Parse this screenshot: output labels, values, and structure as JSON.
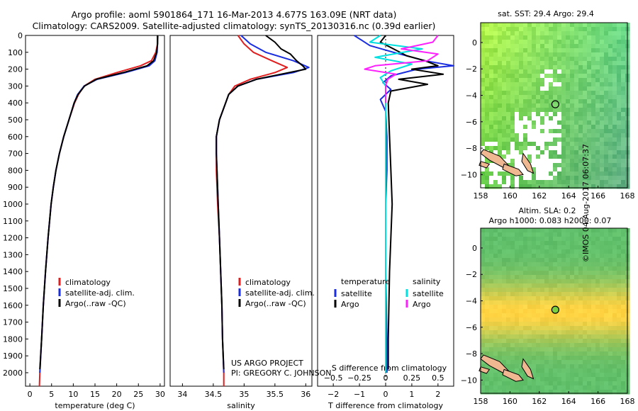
{
  "header": {
    "line1": "Argo profile: aoml 5901864_171 16-Mar-2013 4.677S 163.09E (NRT data)",
    "line2": "Climatology: CARS2009. Satellite-adjusted climatology: synTS_20130316.nc (0.39d earlier)"
  },
  "colors": {
    "climatology": "#e02020",
    "satellite": "#1a2ee0",
    "argo": "#000000",
    "sal_sat": "#00e0e0",
    "sal_argo": "#ff20ff"
  },
  "chart_data": [
    {
      "type": "line",
      "id": "temperature",
      "xlabel": "temperature (deg C)",
      "ylabel": "",
      "xlim": [
        -1,
        31
      ],
      "ylim": [
        2080,
        0
      ],
      "x_ticks": [
        0,
        5,
        10,
        15,
        20,
        25,
        30
      ],
      "y_ticks": [
        0,
        100,
        200,
        300,
        400,
        500,
        600,
        700,
        800,
        900,
        1000,
        1100,
        1200,
        1300,
        1400,
        1500,
        1600,
        1700,
        1800,
        1900,
        2000
      ],
      "legend": [
        "climatology",
        "satellite-adj. clim.",
        "Argo(..raw -QC)"
      ],
      "series": [
        {
          "name": "climatology",
          "color": "#e02020",
          "depth": [
            0,
            50,
            100,
            150,
            180,
            220,
            260,
            300,
            350,
            400,
            500,
            600,
            700,
            800,
            900,
            1000,
            1200,
            1400,
            1600,
            1800,
            2000,
            2080
          ],
          "values": [
            29.5,
            29.4,
            29.0,
            28.0,
            25.5,
            20.0,
            15.0,
            12.5,
            11.2,
            10.3,
            9.0,
            7.8,
            6.8,
            6.0,
            5.4,
            4.9,
            4.2,
            3.6,
            3.1,
            2.7,
            2.3,
            2.2
          ]
        },
        {
          "name": "satellite",
          "color": "#1a2ee0",
          "depth": [
            0,
            50,
            100,
            150,
            180,
            220,
            260,
            300,
            350,
            400,
            500,
            600,
            700,
            800,
            900,
            1000,
            1200,
            1400,
            1600,
            1800,
            2000
          ],
          "values": [
            29.4,
            29.4,
            29.3,
            28.8,
            27.5,
            22.0,
            15.5,
            12.5,
            11.0,
            10.2,
            9.0,
            7.8,
            6.8,
            6.0,
            5.4,
            4.9,
            4.2,
            3.6,
            3.1,
            2.7,
            2.3
          ]
        },
        {
          "name": "argo",
          "color": "#000000",
          "depth": [
            0,
            50,
            100,
            150,
            180,
            220,
            260,
            300,
            350,
            400,
            500,
            600,
            700,
            800,
            900,
            1000,
            1200,
            1400,
            1600,
            1800,
            1980
          ],
          "values": [
            29.4,
            29.4,
            29.2,
            28.5,
            27.0,
            21.5,
            15.3,
            12.6,
            11.1,
            10.2,
            9.0,
            7.8,
            6.8,
            6.0,
            5.4,
            4.9,
            4.2,
            3.6,
            3.1,
            2.7,
            2.3
          ]
        }
      ]
    },
    {
      "type": "line",
      "id": "salinity",
      "xlabel": "salinity",
      "ylabel": "",
      "xlim": [
        33.8,
        36.1
      ],
      "ylim": [
        2080,
        0
      ],
      "x_ticks": [
        34,
        34.5,
        35,
        35.5,
        36
      ],
      "legend": [
        "climatology",
        "satellite-adj. clim.",
        "Argo(..raw -QC)"
      ],
      "annotation": [
        "US ARGO PROJECT",
        "PI: GREGORY C. JOHNSON"
      ],
      "series": [
        {
          "name": "climatology",
          "color": "#e02020",
          "depth": [
            0,
            50,
            100,
            150,
            190,
            220,
            260,
            300,
            350,
            400,
            500,
            600,
            700,
            800,
            1000,
            1200,
            1400,
            1600,
            1800,
            2000,
            2080
          ],
          "values": [
            34.9,
            35.0,
            35.15,
            35.45,
            35.7,
            35.5,
            35.1,
            34.85,
            34.75,
            34.7,
            34.6,
            34.55,
            34.55,
            34.55,
            34.57,
            34.6,
            34.62,
            34.64,
            34.65,
            34.67,
            34.67
          ]
        },
        {
          "name": "satellite",
          "color": "#1a2ee0",
          "depth": [
            0,
            50,
            100,
            150,
            190,
            220,
            260,
            300,
            350,
            400,
            500,
            600,
            700,
            800,
            1000,
            1200,
            1400,
            1600,
            1800,
            2000
          ],
          "values": [
            34.95,
            35.1,
            35.35,
            35.8,
            36.05,
            35.8,
            35.2,
            34.9,
            34.75,
            34.7,
            34.6,
            34.55,
            34.55,
            34.56,
            34.58,
            34.6,
            34.62,
            34.64,
            34.65,
            34.67
          ]
        },
        {
          "name": "argo",
          "color": "#000000",
          "depth": [
            0,
            40,
            80,
            110,
            150,
            180,
            200,
            230,
            260,
            300,
            350,
            400,
            500,
            600,
            700,
            800,
            1000,
            1200,
            1400,
            1600,
            1800,
            1980
          ],
          "values": [
            35.35,
            35.5,
            35.6,
            35.75,
            35.85,
            35.95,
            36.0,
            35.6,
            35.2,
            34.9,
            34.75,
            34.7,
            34.6,
            34.55,
            34.55,
            34.56,
            34.58,
            34.6,
            34.62,
            34.64,
            34.65,
            34.67
          ]
        }
      ]
    },
    {
      "type": "line",
      "id": "difference",
      "xlabel": "T difference from climatology",
      "top_xlabel": "S difference from climatology",
      "xlim": [
        -2.6,
        2.6
      ],
      "ylim": [
        2080,
        0
      ],
      "x_ticks_T": [
        -2,
        -1,
        0,
        1,
        2
      ],
      "x_ticks_S": [
        -0.5,
        -0.25,
        0,
        0.25,
        0.5
      ],
      "x_ticks_S_labels": [
        "−0.5",
        "−0.25",
        "0",
        "0.25",
        "0.5"
      ],
      "legend_T": {
        "title": "temperature",
        "items": [
          "satellite",
          "Argo"
        ]
      },
      "legend_S": {
        "title": "salinity",
        "items": [
          "satellite",
          "Argo"
        ]
      },
      "series": [
        {
          "name": "T satellite",
          "color": "#1a2ee0",
          "depth": [
            0,
            60,
            100,
            150,
            180,
            200,
            240,
            280,
            320,
            380,
            450,
            600,
            800,
            1000,
            1400,
            1800,
            2000
          ],
          "values": [
            -1.2,
            -0.6,
            0.3,
            1.5,
            2.6,
            1.2,
            0.2,
            -0.1,
            0.2,
            -0.2,
            0.0,
            0.05,
            0.05,
            0.0,
            0.0,
            0.05,
            0.05
          ]
        },
        {
          "name": "T argo",
          "color": "#000000",
          "depth": [
            0,
            40,
            80,
            120,
            150,
            180,
            200,
            230,
            260,
            290,
            330,
            400,
            600,
            800,
            1000,
            1400,
            1800,
            1980
          ],
          "values": [
            0.0,
            -0.2,
            0.3,
            0.8,
            1.5,
            2.0,
            1.0,
            2.2,
            0.5,
            1.6,
            0.2,
            0.1,
            0.15,
            0.2,
            0.25,
            0.15,
            0.1,
            0.1
          ]
        },
        {
          "name": "S satellite",
          "color": "#00e0e0",
          "depth": [
            0,
            40,
            80,
            130,
            170,
            210,
            250,
            300,
            400,
            600,
            800,
            1000,
            1400,
            1800,
            2000
          ],
          "values": [
            -0.05,
            -0.15,
            0.35,
            -0.1,
            0.25,
            0.05,
            -0.05,
            0.0,
            0.0,
            0.0,
            0.0,
            0.0,
            0.0,
            0.0,
            0.0
          ]
        },
        {
          "name": "S argo",
          "color": "#ff20ff",
          "depth": [
            0,
            40,
            80,
            110,
            150,
            180,
            200,
            230,
            260,
            300,
            400
          ],
          "values": [
            0.5,
            0.45,
            0.15,
            0.5,
            0.4,
            -0.1,
            -0.2,
            0.1,
            0.02,
            0.0,
            0.0
          ]
        }
      ]
    },
    {
      "type": "heatmap",
      "id": "sst_map",
      "title": "sat. SST: 29.4  Argo: 29.4",
      "xlim": [
        158,
        168
      ],
      "ylim": [
        -11,
        1.5
      ],
      "x_ticks": [
        158,
        160,
        162,
        164,
        166,
        168
      ],
      "y_ticks": [
        0,
        -2,
        -4,
        -6,
        -8,
        -10
      ],
      "marker": {
        "lon": 163.09,
        "lat": -4.677
      }
    },
    {
      "type": "heatmap",
      "id": "sla_map",
      "title": "Altim. SLA: 0.2",
      "subtitle": "Argo h1000: 0.083 h2000: 0.07",
      "xlim": [
        158,
        168
      ],
      "ylim": [
        -11,
        1.5
      ],
      "x_ticks": [
        158,
        160,
        162,
        164,
        166,
        168
      ],
      "y_ticks": [
        0,
        -2,
        -4,
        -6,
        -8,
        -10
      ],
      "marker": {
        "lon": 163.09,
        "lat": -4.677
      }
    }
  ],
  "stamp": "©IMOS 04-Aug-2017 06:07:37"
}
